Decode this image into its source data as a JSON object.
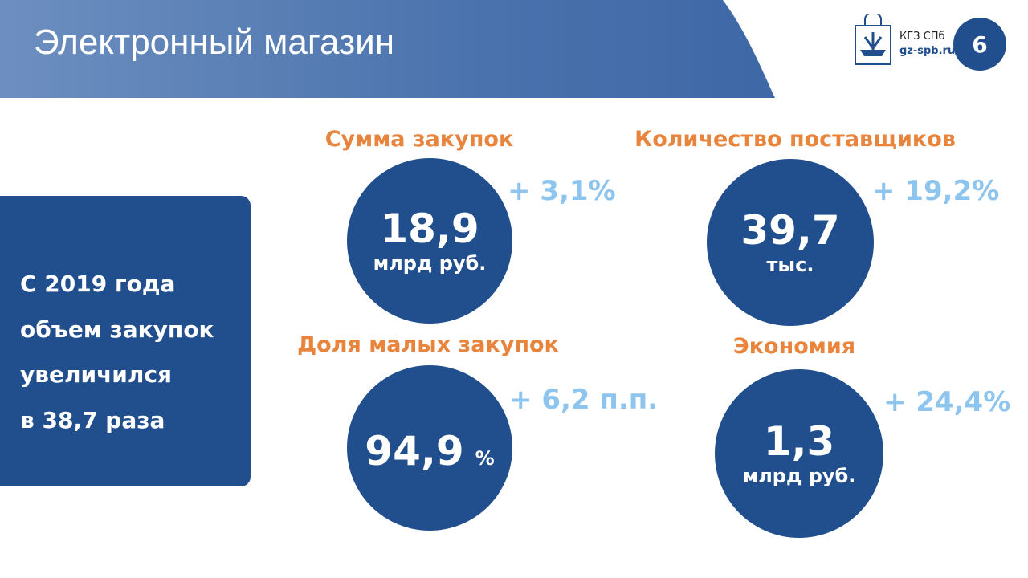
{
  "header": {
    "title": "Электронный магазин",
    "logo_name": "КГЗ СПб",
    "logo_site": "gz-spb.ru",
    "page_number": "6"
  },
  "summary": {
    "lines": [
      "С 2019 года",
      "объем закупок",
      "увеличился",
      "в 38,7 раза"
    ]
  },
  "metrics": [
    {
      "title": "Сумма закупок",
      "value": "18,9",
      "unit": "млрд руб.",
      "change": "+ 3,1%"
    },
    {
      "title": "Количество поставщиков",
      "value": "39,7",
      "unit": "тыс.",
      "change": "+ 19,2%"
    },
    {
      "title": "Доля малых закупок",
      "value": "94,9",
      "unit": "%",
      "change": "+ 6,2 п.п."
    },
    {
      "title": "Экономия",
      "value": "1,3",
      "unit": "млрд руб.",
      "change": "+ 24,4%"
    }
  ]
}
